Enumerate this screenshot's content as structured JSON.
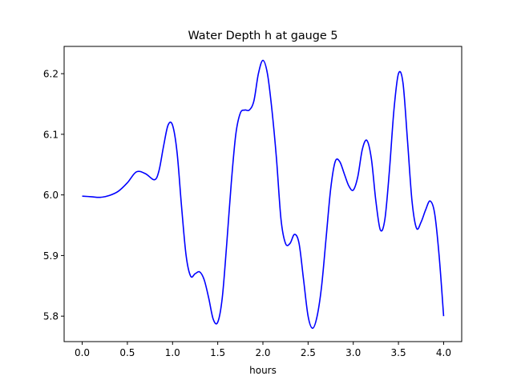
{
  "chart_data": {
    "type": "line",
    "title": "Water Depth h at gauge 5",
    "xlabel": "hours",
    "ylabel": "",
    "xlim": [
      -0.2,
      4.2
    ],
    "ylim": [
      5.758,
      6.245
    ],
    "xticks": [
      "0.0",
      "0.5",
      "1.0",
      "1.5",
      "2.0",
      "2.5",
      "3.0",
      "3.5",
      "4.0"
    ],
    "yticks": [
      "5.8",
      "5.9",
      "6.0",
      "6.1",
      "6.2"
    ],
    "grid": false,
    "series": [
      {
        "color": "#0000ff",
        "points": [
          [
            0.0,
            5.998
          ],
          [
            0.1,
            5.997
          ],
          [
            0.2,
            5.996
          ],
          [
            0.3,
            5.999
          ],
          [
            0.4,
            6.006
          ],
          [
            0.5,
            6.02
          ],
          [
            0.6,
            6.038
          ],
          [
            0.7,
            6.035
          ],
          [
            0.8,
            6.025
          ],
          [
            0.85,
            6.04
          ],
          [
            0.9,
            6.08
          ],
          [
            0.95,
            6.115
          ],
          [
            1.0,
            6.115
          ],
          [
            1.05,
            6.07
          ],
          [
            1.1,
            5.98
          ],
          [
            1.15,
            5.9
          ],
          [
            1.2,
            5.866
          ],
          [
            1.25,
            5.87
          ],
          [
            1.3,
            5.873
          ],
          [
            1.35,
            5.86
          ],
          [
            1.4,
            5.83
          ],
          [
            1.45,
            5.795
          ],
          [
            1.5,
            5.79
          ],
          [
            1.55,
            5.83
          ],
          [
            1.6,
            5.92
          ],
          [
            1.65,
            6.02
          ],
          [
            1.7,
            6.1
          ],
          [
            1.75,
            6.135
          ],
          [
            1.8,
            6.14
          ],
          [
            1.85,
            6.14
          ],
          [
            1.9,
            6.155
          ],
          [
            1.95,
            6.2
          ],
          [
            2.0,
            6.222
          ],
          [
            2.05,
            6.2
          ],
          [
            2.1,
            6.14
          ],
          [
            2.15,
            6.06
          ],
          [
            2.2,
            5.96
          ],
          [
            2.25,
            5.92
          ],
          [
            2.3,
            5.92
          ],
          [
            2.35,
            5.935
          ],
          [
            2.4,
            5.92
          ],
          [
            2.45,
            5.86
          ],
          [
            2.5,
            5.8
          ],
          [
            2.55,
            5.78
          ],
          [
            2.6,
            5.8
          ],
          [
            2.65,
            5.85
          ],
          [
            2.7,
            5.93
          ],
          [
            2.75,
            6.01
          ],
          [
            2.8,
            6.055
          ],
          [
            2.85,
            6.055
          ],
          [
            2.9,
            6.035
          ],
          [
            2.95,
            6.015
          ],
          [
            3.0,
            6.008
          ],
          [
            3.05,
            6.03
          ],
          [
            3.1,
            6.075
          ],
          [
            3.15,
            6.09
          ],
          [
            3.2,
            6.06
          ],
          [
            3.25,
            5.99
          ],
          [
            3.3,
            5.942
          ],
          [
            3.35,
            5.96
          ],
          [
            3.4,
            6.04
          ],
          [
            3.45,
            6.14
          ],
          [
            3.5,
            6.2
          ],
          [
            3.55,
            6.185
          ],
          [
            3.6,
            6.09
          ],
          [
            3.65,
            5.99
          ],
          [
            3.7,
            5.945
          ],
          [
            3.75,
            5.955
          ],
          [
            3.8,
            5.975
          ],
          [
            3.85,
            5.99
          ],
          [
            3.9,
            5.97
          ],
          [
            3.95,
            5.9
          ],
          [
            4.0,
            5.8
          ]
        ]
      }
    ]
  }
}
